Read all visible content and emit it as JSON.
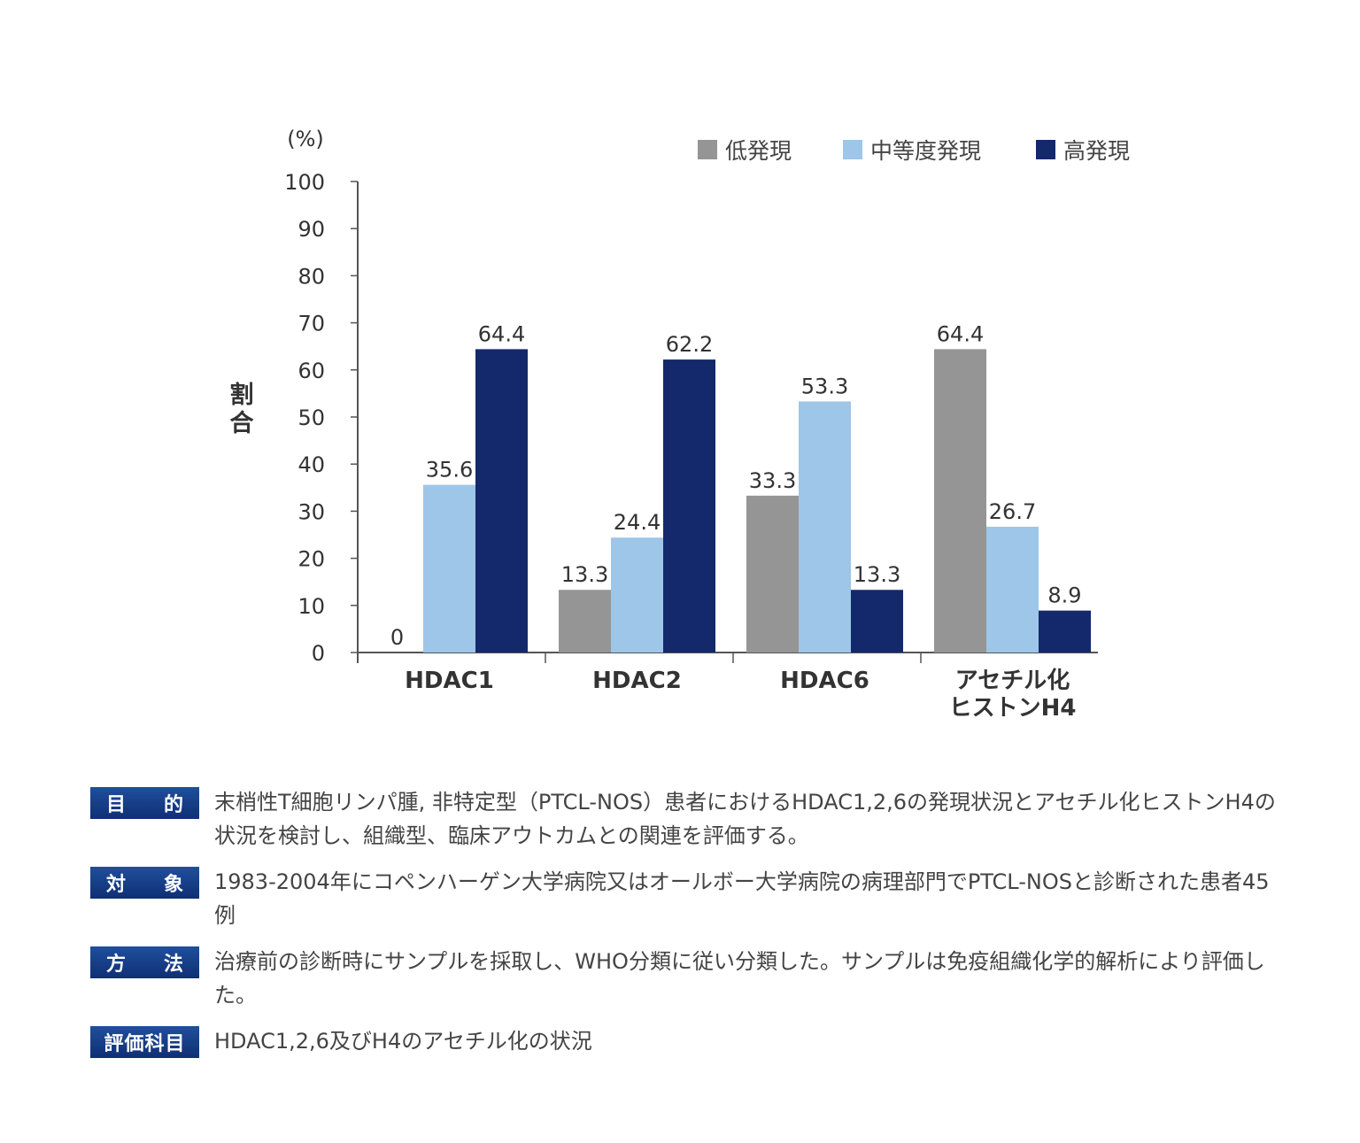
{
  "chart_data": {
    "type": "bar",
    "ylabel": "割合",
    "yunit": "(%)",
    "ylim": [
      0,
      100
    ],
    "yticks": [
      0,
      10,
      20,
      30,
      40,
      50,
      60,
      70,
      80,
      90,
      100
    ],
    "grid": false,
    "legend_position": "top-right",
    "categories": [
      "HDAC1",
      "HDAC2",
      "HDAC6",
      "アセチル化\nヒストンH4"
    ],
    "series": [
      {
        "name": "低発現",
        "color": "#959595",
        "values": [
          0,
          13.3,
          33.3,
          64.4
        ]
      },
      {
        "name": "中等度発現",
        "color": "#9dc6e8",
        "values": [
          35.6,
          24.4,
          53.3,
          26.7
        ]
      },
      {
        "name": "高発現",
        "color": "#13296b",
        "values": [
          64.4,
          62.2,
          13.3,
          8.9
        ]
      }
    ]
  },
  "info": [
    {
      "label": [
        "目",
        "的"
      ],
      "text": "末梢性T細胞リンパ腫, 非特定型（PTCL-NOS）患者におけるHDAC1,2,6の発現状況とアセチル化ヒストンH4の状況を検討し、組織型、臨床アウトカムとの関連を評価する。"
    },
    {
      "label": [
        "対",
        "象"
      ],
      "text": "1983-2004年にコペンハーゲン大学病院又はオールボー大学病院の病理部門でPTCL-NOSと診断された患者45例"
    },
    {
      "label": [
        "方",
        "法"
      ],
      "text": "治療前の診断時にサンプルを採取し、WHO分類に従い分類した。サンプルは免疫組織化学的解析により評価した。"
    },
    {
      "label": [
        "評価科目"
      ],
      "text": "HDAC1,2,6及びH4のアセチル化の状況"
    }
  ]
}
